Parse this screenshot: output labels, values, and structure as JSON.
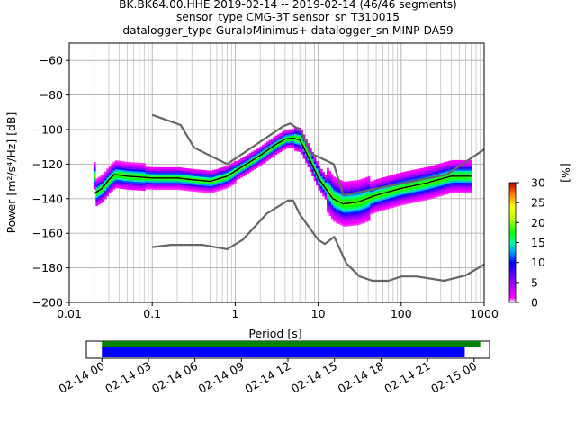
{
  "chart_data": {
    "type": "heatmap",
    "title_lines": [
      "BK.BK64.00.HHE   2019-02-14 -- 2019-02-14  (46/46 segments)",
      "sensor_type CMG-3T sensor_sn T310015",
      "datalogger_type GuralpMinimus+ datalogger_sn MINP-DA59"
    ],
    "xlabel": "Period [s]",
    "ylabel": "Power [m²/s⁴/Hz] [dB]",
    "xscale": "log",
    "xlim": [
      0.01,
      1000
    ],
    "ylim": [
      -200,
      -50
    ],
    "xticks": [
      0.01,
      0.1,
      1,
      10,
      100,
      1000
    ],
    "xtick_labels": [
      "0.01",
      "0.1",
      "1",
      "10",
      "100",
      "1000"
    ],
    "yticks": [
      -200,
      -180,
      -160,
      -140,
      -120,
      -100,
      -80,
      -60
    ],
    "ytick_labels": [
      "−200",
      "−180",
      "−160",
      "−140",
      "−120",
      "−100",
      "−80",
      "−60"
    ],
    "grid": true,
    "colorbar": {
      "label": "[%]",
      "range": [
        0,
        30
      ],
      "ticks": [
        0,
        5,
        10,
        15,
        20,
        25,
        30
      ],
      "tick_labels": [
        "0",
        "5",
        "10",
        "15",
        "20",
        "25",
        "30"
      ]
    },
    "mean_curve": [
      [
        0.02,
        -137
      ],
      [
        0.025,
        -134
      ],
      [
        0.03,
        -129
      ],
      [
        0.035,
        -126
      ],
      [
        0.05,
        -127
      ],
      [
        0.1,
        -128
      ],
      [
        0.2,
        -128
      ],
      [
        0.3,
        -129
      ],
      [
        0.5,
        -130
      ],
      [
        0.8,
        -127
      ],
      [
        1,
        -124
      ],
      [
        2,
        -115
      ],
      [
        3,
        -109
      ],
      [
        4,
        -105.5
      ],
      [
        5,
        -105
      ],
      [
        6,
        -106
      ],
      [
        8,
        -118
      ],
      [
        10,
        -128
      ],
      [
        15,
        -140
      ],
      [
        20,
        -143
      ],
      [
        30,
        -142
      ],
      [
        50,
        -138
      ],
      [
        100,
        -134
      ],
      [
        200,
        -131
      ],
      [
        400,
        -127
      ],
      [
        700,
        -127
      ]
    ],
    "nhnm": [
      [
        0.1,
        -91.5
      ],
      [
        0.22,
        -97.4
      ],
      [
        0.32,
        -110.5
      ],
      [
        0.8,
        -120
      ],
      [
        3.8,
        -98
      ],
      [
        4.6,
        -96.5
      ],
      [
        6.3,
        -101
      ],
      [
        7.9,
        -113.5
      ],
      [
        15.4,
        -120
      ],
      [
        20,
        -138
      ],
      [
        354.8,
        -126
      ],
      [
        1000,
        -111.5
      ]
    ],
    "nlnm": [
      [
        0.1,
        -168
      ],
      [
        0.17,
        -166.7
      ],
      [
        0.4,
        -166.7
      ],
      [
        0.8,
        -169.2
      ],
      [
        1.24,
        -163.7
      ],
      [
        2.4,
        -148.6
      ],
      [
        4.3,
        -141.1
      ],
      [
        5,
        -141.1
      ],
      [
        6,
        -149
      ],
      [
        10,
        -163.8
      ],
      [
        12,
        -166.2
      ],
      [
        15.6,
        -162.1
      ],
      [
        21.9,
        -177.5
      ],
      [
        31.6,
        -185
      ],
      [
        45,
        -187.5
      ],
      [
        70,
        -187.5
      ],
      [
        101,
        -185
      ],
      [
        154,
        -185
      ],
      [
        328,
        -187.5
      ],
      [
        600,
        -184.4
      ],
      [
        1000,
        -178
      ]
    ],
    "availability": {
      "x_tick_labels": [
        "02-14 00",
        "02-14 03",
        "02-14 06",
        "02-14 09",
        "02-14 12",
        "02-14 15",
        "02-14 18",
        "02-14 21",
        "02-15 00"
      ],
      "range_hours": [
        -1,
        25
      ],
      "data_gaps_bar": [
        0,
        24.4
      ],
      "psd_bar": [
        0,
        23.4
      ],
      "colors": {
        "data": "#008000",
        "psd": "#0000ff"
      }
    },
    "colors": {
      "mean": "#000000",
      "noise_models": "#666666",
      "grid": "#b0b0b0"
    }
  }
}
